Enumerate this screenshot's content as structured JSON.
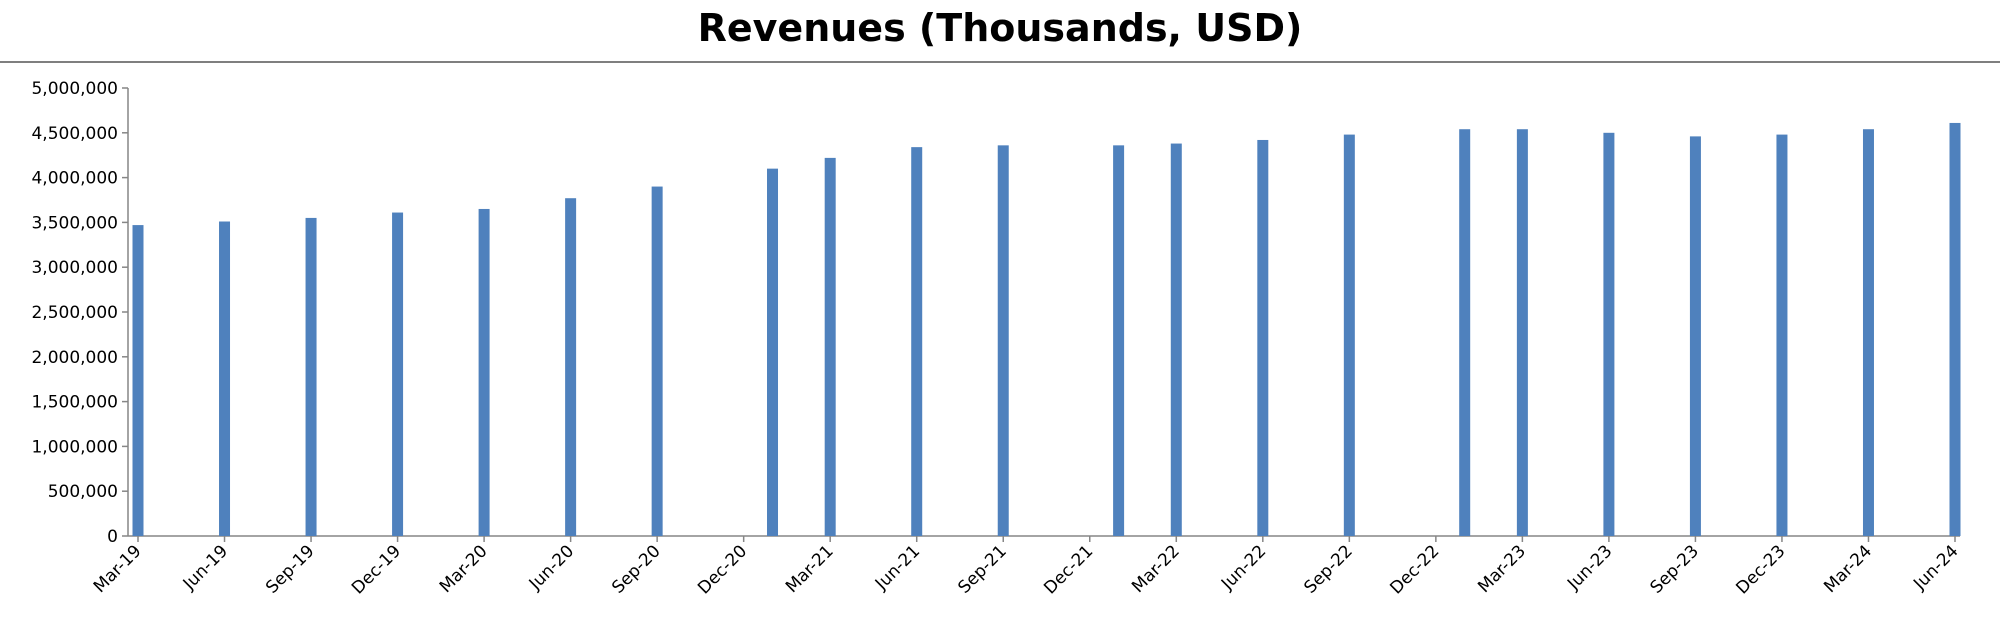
{
  "chart_data": {
    "type": "bar",
    "title": "Revenues (Thousands, USD)",
    "xlabel": "",
    "ylabel": "",
    "ylim": [
      0,
      5000000
    ],
    "y_ticks": [
      "0",
      "500,000",
      "1,000,000",
      "1,500,000",
      "2,000,000",
      "2,500,000",
      "3,000,000",
      "3,500,000",
      "4,000,000",
      "4,500,000",
      "5,000,000"
    ],
    "x_axis": {
      "type": "date",
      "start": "2019-03",
      "end": "2024-06",
      "tick_labels": [
        "Mar-19",
        "Jun-19",
        "Sep-19",
        "Dec-19",
        "Mar-20",
        "Jun-20",
        "Sep-20",
        "Dec-20",
        "Mar-21",
        "Jun-21",
        "Sep-21",
        "Dec-21",
        "Mar-22",
        "Jun-22",
        "Sep-22",
        "Dec-22",
        "Mar-23",
        "Jun-23",
        "Sep-23",
        "Dec-23",
        "Mar-24",
        "Jun-24"
      ]
    },
    "series": [
      {
        "color": "#4f81bd",
        "points": [
          {
            "x": "2019-03",
            "y": 3470000
          },
          {
            "x": "2019-06",
            "y": 3510000
          },
          {
            "x": "2019-09",
            "y": 3550000
          },
          {
            "x": "2019-12",
            "y": 3610000
          },
          {
            "x": "2020-03",
            "y": 3650000
          },
          {
            "x": "2020-06",
            "y": 3770000
          },
          {
            "x": "2020-09",
            "y": 3900000
          },
          {
            "x": "2021-01",
            "y": 4100000
          },
          {
            "x": "2021-03",
            "y": 4220000
          },
          {
            "x": "2021-06",
            "y": 4340000
          },
          {
            "x": "2021-09",
            "y": 4360000
          },
          {
            "x": "2022-01",
            "y": 4360000
          },
          {
            "x": "2022-03",
            "y": 4380000
          },
          {
            "x": "2022-06",
            "y": 4420000
          },
          {
            "x": "2022-09",
            "y": 4480000
          },
          {
            "x": "2023-01",
            "y": 4540000
          },
          {
            "x": "2023-03",
            "y": 4540000
          },
          {
            "x": "2023-06",
            "y": 4500000
          },
          {
            "x": "2023-09",
            "y": 4460000
          },
          {
            "x": "2023-12",
            "y": 4480000
          },
          {
            "x": "2024-03",
            "y": 4540000
          },
          {
            "x": "2024-06",
            "y": 4610000
          }
        ]
      }
    ],
    "grid": false,
    "legend": "none"
  }
}
